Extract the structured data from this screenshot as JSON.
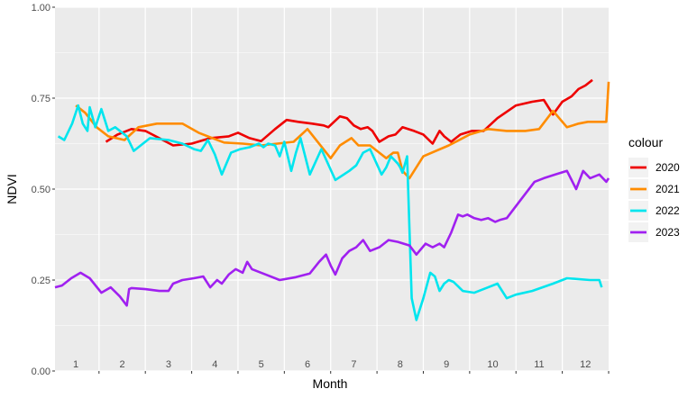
{
  "chart_data": {
    "type": "line",
    "xlabel": "Month",
    "ylabel": "NDVI",
    "xlim": [
      0.55,
      12.5
    ],
    "ylim": [
      0,
      1
    ],
    "x_ticks": [
      1,
      2,
      3,
      4,
      5,
      6,
      7,
      8,
      9,
      10,
      11,
      12
    ],
    "x_tick_labels": [
      "1",
      "2",
      "3",
      "4",
      "5",
      "6",
      "7",
      "8",
      "9",
      "10",
      "11",
      "12"
    ],
    "y_ticks": [
      0,
      0.25,
      0.5,
      0.75,
      1.0
    ],
    "y_tick_labels": [
      "0.00",
      "0.25",
      "0.50",
      "0.75",
      "1.00"
    ],
    "grid": true,
    "legend": {
      "title": "colour",
      "position": "right"
    },
    "series": [
      {
        "name": "2020",
        "color": "#ee0000",
        "x": [
          1.65,
          1.9,
          2.2,
          2.5,
          2.8,
          3.1,
          3.5,
          3.9,
          4.3,
          4.5,
          4.75,
          5.0,
          5.3,
          5.55,
          5.8,
          6.1,
          6.35,
          6.45,
          6.7,
          6.85,
          7.0,
          7.15,
          7.3,
          7.4,
          7.55,
          7.75,
          7.9,
          8.05,
          8.3,
          8.5,
          8.7,
          8.85,
          8.95,
          9.1,
          9.3,
          9.55,
          9.8,
          10.1,
          10.5,
          10.85,
          11.1,
          11.3,
          11.5,
          11.7,
          11.85,
          12.0,
          12.15
        ],
        "y": [
          0.63,
          0.65,
          0.665,
          0.66,
          0.64,
          0.62,
          0.625,
          0.64,
          0.645,
          0.655,
          0.64,
          0.632,
          0.665,
          0.69,
          0.685,
          0.68,
          0.675,
          0.67,
          0.7,
          0.695,
          0.675,
          0.665,
          0.67,
          0.66,
          0.63,
          0.645,
          0.65,
          0.67,
          0.66,
          0.65,
          0.625,
          0.66,
          0.645,
          0.63,
          0.65,
          0.66,
          0.66,
          0.695,
          0.73,
          0.74,
          0.745,
          0.705,
          0.74,
          0.755,
          0.775,
          0.785,
          0.8
        ]
      },
      {
        "name": "2021",
        "color": "#ff8c00",
        "x": [
          1.0,
          1.2,
          1.45,
          1.7,
          2.05,
          2.35,
          2.75,
          3.0,
          3.3,
          3.65,
          3.95,
          4.2,
          4.6,
          5.0,
          5.35,
          5.7,
          6.0,
          6.5,
          6.7,
          6.95,
          7.1,
          7.25,
          7.35,
          7.55,
          7.7,
          7.85,
          7.95,
          8.05,
          8.2,
          8.5,
          9.05,
          9.5,
          9.9,
          10.3,
          10.7,
          11.0,
          11.3,
          11.6,
          11.85,
          12.05,
          12.3,
          12.45,
          12.5
        ],
        "y": [
          0.73,
          0.71,
          0.67,
          0.645,
          0.635,
          0.67,
          0.68,
          0.68,
          0.68,
          0.655,
          0.64,
          0.628,
          0.625,
          0.62,
          0.625,
          0.63,
          0.665,
          0.585,
          0.62,
          0.64,
          0.62,
          0.62,
          0.62,
          0.6,
          0.585,
          0.6,
          0.6,
          0.55,
          0.53,
          0.59,
          0.62,
          0.65,
          0.665,
          0.66,
          0.66,
          0.665,
          0.715,
          0.67,
          0.68,
          0.685,
          0.685,
          0.685,
          0.795
        ]
      },
      {
        "name": "2022",
        "color": "#00e5ee",
        "x": [
          0.62,
          0.75,
          0.92,
          1.05,
          1.15,
          1.25,
          1.3,
          1.42,
          1.55,
          1.7,
          1.85,
          2.1,
          2.25,
          2.6,
          3.0,
          3.3,
          3.55,
          3.7,
          3.85,
          4.0,
          4.15,
          4.35,
          4.55,
          4.75,
          4.85,
          4.95,
          5.05,
          5.15,
          5.3,
          5.4,
          5.5,
          5.65,
          5.75,
          5.85,
          6.05,
          6.3,
          6.6,
          6.9,
          7.05,
          7.2,
          7.35,
          7.6,
          7.7,
          7.8,
          7.95,
          8.0,
          8.05,
          8.15,
          8.25,
          8.35,
          8.5,
          8.65,
          8.75,
          8.85,
          8.95,
          9.05,
          9.15,
          9.35,
          9.6,
          9.9,
          10.1,
          10.3,
          10.5,
          10.85,
          11.3,
          11.6,
          12.1,
          12.3,
          12.35
        ],
        "y": [
          0.645,
          0.635,
          0.68,
          0.73,
          0.68,
          0.66,
          0.725,
          0.67,
          0.72,
          0.66,
          0.67,
          0.645,
          0.605,
          0.64,
          0.635,
          0.625,
          0.61,
          0.605,
          0.635,
          0.595,
          0.54,
          0.6,
          0.61,
          0.615,
          0.62,
          0.625,
          0.615,
          0.625,
          0.62,
          0.59,
          0.63,
          0.55,
          0.6,
          0.64,
          0.54,
          0.61,
          0.525,
          0.55,
          0.565,
          0.6,
          0.61,
          0.54,
          0.56,
          0.59,
          0.57,
          0.56,
          0.545,
          0.59,
          0.2,
          0.14,
          0.2,
          0.27,
          0.26,
          0.22,
          0.24,
          0.25,
          0.245,
          0.22,
          0.215,
          0.23,
          0.24,
          0.2,
          0.21,
          0.22,
          0.24,
          0.255,
          0.25,
          0.25,
          0.23
        ]
      },
      {
        "name": "2023",
        "color": "#a020f0",
        "x": [
          0.55,
          0.7,
          0.9,
          1.1,
          1.3,
          1.55,
          1.75,
          1.95,
          2.1,
          2.15,
          2.2,
          2.5,
          2.8,
          3.0,
          3.1,
          3.3,
          3.55,
          3.75,
          3.9,
          4.05,
          4.15,
          4.3,
          4.45,
          4.6,
          4.7,
          4.8,
          5.1,
          5.4,
          5.75,
          6.05,
          6.25,
          6.4,
          6.5,
          6.6,
          6.75,
          6.9,
          7.05,
          7.2,
          7.35,
          7.55,
          7.75,
          7.95,
          8.2,
          8.35,
          8.55,
          8.7,
          8.85,
          8.95,
          9.1,
          9.25,
          9.35,
          9.45,
          9.6,
          9.75,
          9.9,
          10.05,
          10.15,
          10.3,
          10.6,
          10.9,
          11.1,
          11.35,
          11.6,
          11.8,
          11.95,
          12.1,
          12.3,
          12.45,
          12.5
        ],
        "y": [
          0.23,
          0.235,
          0.255,
          0.27,
          0.255,
          0.215,
          0.23,
          0.205,
          0.18,
          0.225,
          0.228,
          0.225,
          0.22,
          0.22,
          0.24,
          0.25,
          0.255,
          0.26,
          0.23,
          0.25,
          0.24,
          0.265,
          0.28,
          0.27,
          0.3,
          0.28,
          0.265,
          0.25,
          0.258,
          0.268,
          0.3,
          0.32,
          0.29,
          0.265,
          0.31,
          0.33,
          0.34,
          0.36,
          0.33,
          0.34,
          0.36,
          0.355,
          0.345,
          0.32,
          0.35,
          0.34,
          0.35,
          0.34,
          0.38,
          0.43,
          0.425,
          0.43,
          0.42,
          0.415,
          0.42,
          0.41,
          0.415,
          0.42,
          0.47,
          0.52,
          0.53,
          0.54,
          0.55,
          0.5,
          0.55,
          0.53,
          0.54,
          0.52,
          0.53
        ]
      }
    ]
  }
}
